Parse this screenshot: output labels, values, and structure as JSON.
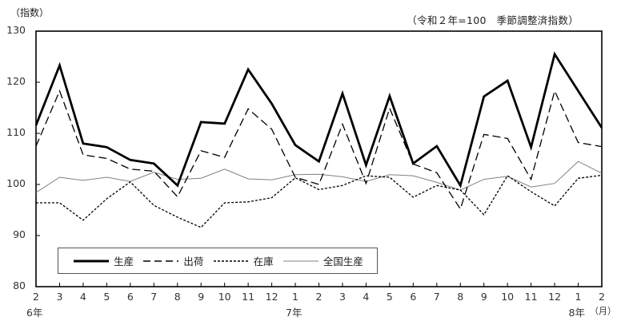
{
  "header": {
    "y_unit": "（指数）",
    "subtitle": "（令和２年=100　季節調整済指数）"
  },
  "axis": {
    "y_ticks": [
      "130",
      "120",
      "110",
      "100",
      "90",
      "80"
    ],
    "x_ticks": [
      "2",
      "3",
      "4",
      "5",
      "6",
      "7",
      "8",
      "9",
      "10",
      "11",
      "12",
      "1",
      "2",
      "3",
      "4",
      "5",
      "6",
      "7",
      "8",
      "9",
      "10",
      "11",
      "12",
      "1",
      "2"
    ],
    "year_labels": [
      {
        "label": "6年",
        "index": 0
      },
      {
        "label": "7年",
        "index": 11
      },
      {
        "label": "8年",
        "index": 23
      }
    ],
    "x_unit": "（月）"
  },
  "legend": {
    "items": [
      {
        "label": "生産",
        "style": "thick-solid"
      },
      {
        "label": "出荷",
        "style": "dashed"
      },
      {
        "label": "在庫",
        "style": "dotted"
      },
      {
        "label": "全国生産",
        "style": "thin-solid"
      }
    ]
  },
  "colors": {
    "production": "#000000",
    "shipments": "#000000",
    "inventory": "#000000",
    "national": "#808080",
    "frame": "#000000"
  },
  "chart_data": {
    "type": "line",
    "title": "",
    "subtitle": "（令和２年=100　季節調整済指数）",
    "xlabel": "（月）",
    "ylabel": "（指数）",
    "ylim": [
      80,
      130
    ],
    "yticks": [
      80,
      90,
      100,
      110,
      120,
      130
    ],
    "grid": false,
    "legend_position": "bottom-left inside",
    "categories": [
      "6年2",
      "3",
      "4",
      "5",
      "6",
      "7",
      "8",
      "9",
      "10",
      "11",
      "12",
      "7年1",
      "2",
      "3",
      "4",
      "5",
      "6",
      "7",
      "8",
      "9",
      "10",
      "11",
      "12",
      "8年1",
      "2"
    ],
    "series": [
      {
        "name": "生産",
        "style": "thick-solid",
        "values": [
          111.6,
          123.3,
          108.0,
          107.3,
          104.8,
          104.1,
          99.8,
          112.2,
          111.9,
          122.5,
          115.8,
          107.7,
          104.5,
          117.8,
          103.8,
          117.3,
          104.1,
          107.5,
          99.8,
          117.2,
          120.3,
          107.3,
          125.5,
          118.3,
          111.1
        ]
      },
      {
        "name": "出荷",
        "style": "dashed",
        "values": [
          107.5,
          118.3,
          105.8,
          105.1,
          103.0,
          102.6,
          97.6,
          106.6,
          105.3,
          114.8,
          110.8,
          101.4,
          100.0,
          111.8,
          100.2,
          114.9,
          104.0,
          102.3,
          95.2,
          109.8,
          109.0,
          101.0,
          118.3,
          108.2,
          107.4
        ]
      },
      {
        "name": "在庫",
        "style": "dotted",
        "values": [
          96.4,
          96.4,
          93.0,
          97.2,
          100.5,
          95.9,
          93.6,
          91.6,
          96.4,
          96.6,
          97.4,
          101.3,
          99.0,
          99.8,
          101.7,
          101.4,
          97.5,
          99.8,
          98.9,
          94.1,
          101.7,
          98.6,
          95.8,
          101.2,
          101.8
        ]
      },
      {
        "name": "全国生産",
        "style": "thin-solid",
        "values": [
          98.4,
          101.4,
          100.8,
          101.4,
          100.6,
          102.4,
          101.0,
          101.2,
          103.0,
          101.1,
          100.9,
          101.9,
          102.0,
          101.5,
          100.6,
          101.9,
          101.7,
          100.4,
          98.9,
          101.0,
          101.6,
          99.5,
          100.2,
          104.5,
          102.2
        ]
      }
    ]
  }
}
